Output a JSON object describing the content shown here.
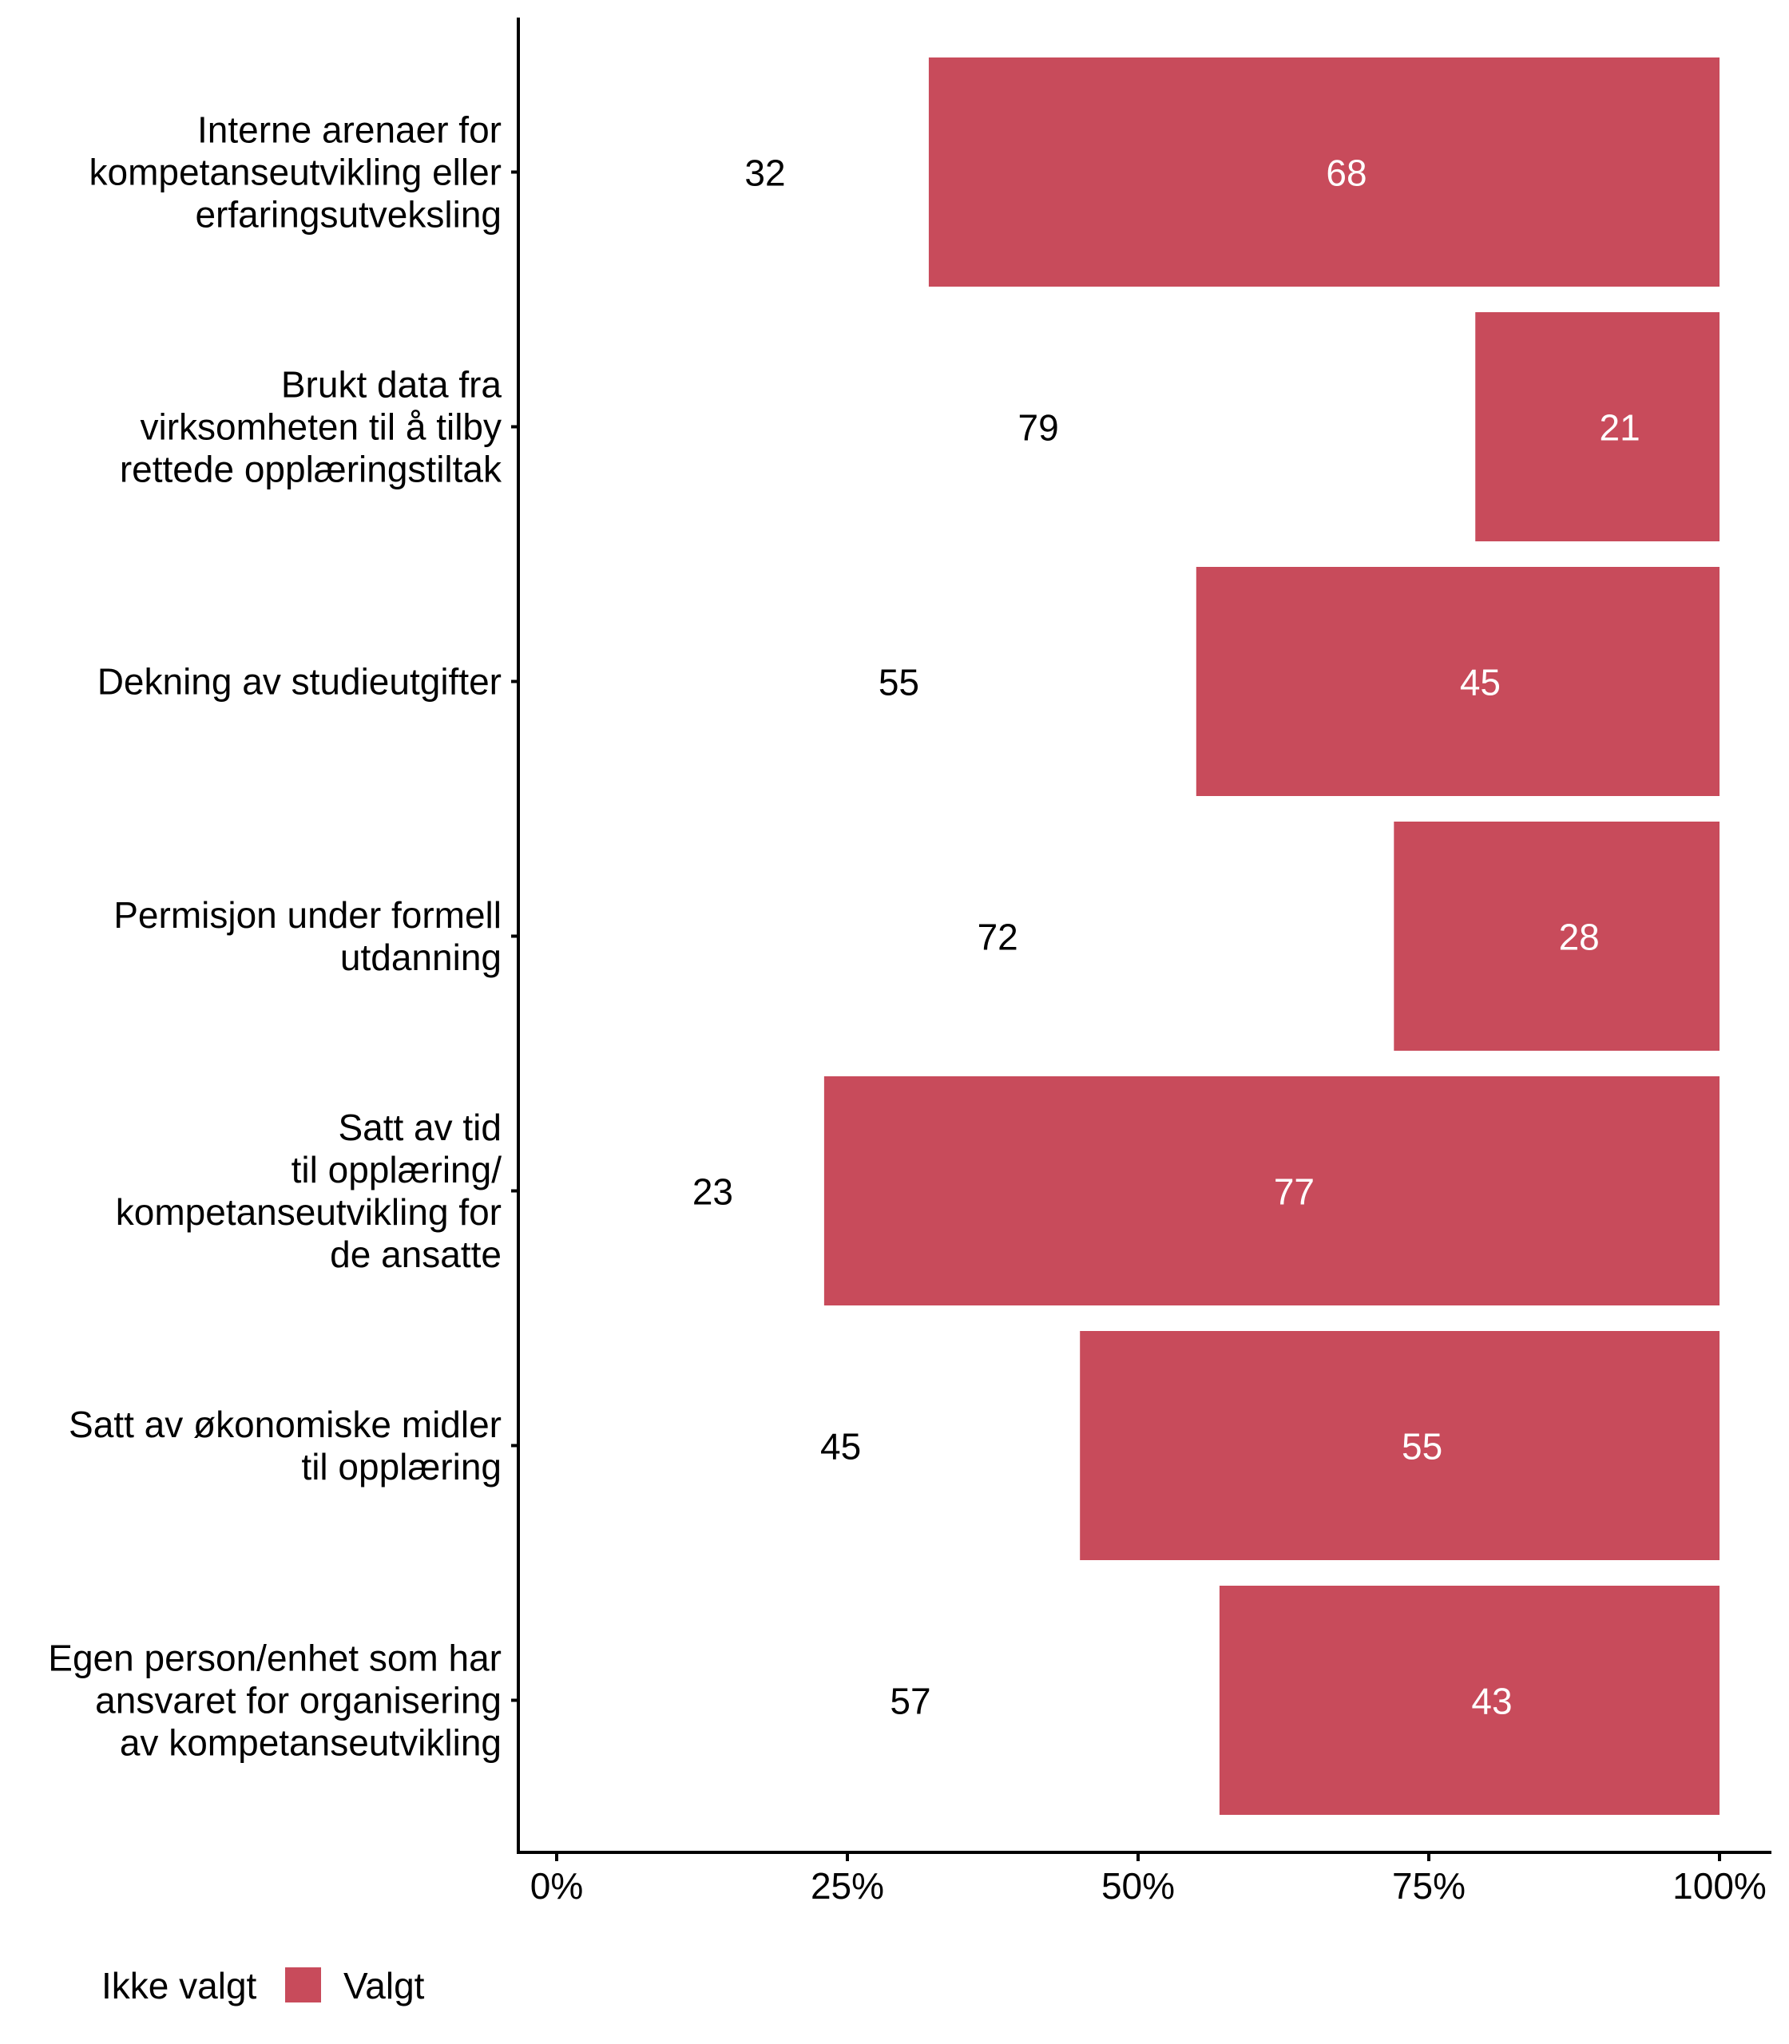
{
  "chart_data": {
    "type": "bar",
    "orientation": "horizontal",
    "stacked": true,
    "title": "",
    "xlabel": "",
    "ylabel": "",
    "xlim": [
      0,
      100
    ],
    "x_ticks": [
      "0%",
      "25%",
      "50%",
      "75%",
      "100%"
    ],
    "x_tick_values": [
      0,
      25,
      50,
      75,
      100
    ],
    "grid": false,
    "categories": [
      [
        "Interne arenaer for",
        "kompetanseutvikling eller",
        "erfaringsutveksling"
      ],
      [
        "Brukt data fra",
        "virksomheten til å tilby",
        "rettede opplæringstiltak"
      ],
      [
        "Dekning av studieutgifter"
      ],
      [
        "Permisjon under formell",
        "utdanning"
      ],
      [
        "Satt av tid",
        "til opplæring/",
        "kompetanseutvikling for",
        "de ansatte"
      ],
      [
        "Satt av økonomiske midler",
        "til opplæring"
      ],
      [
        "Egen person/enhet som har",
        "ansvaret for organisering",
        "av kompetanseutvikling"
      ]
    ],
    "series": [
      {
        "name": "Ikke valgt",
        "color": "#ffffff",
        "label_color": "#000000",
        "values": [
          32,
          79,
          55,
          72,
          23,
          45,
          57
        ]
      },
      {
        "name": "Valgt",
        "color": "#C84B5B",
        "label_color": "#ffffff",
        "values": [
          68,
          21,
          45,
          28,
          77,
          55,
          43
        ]
      }
    ],
    "legend": {
      "position": "bottom-left",
      "items": [
        "Ikke valgt",
        "Valgt"
      ]
    }
  }
}
